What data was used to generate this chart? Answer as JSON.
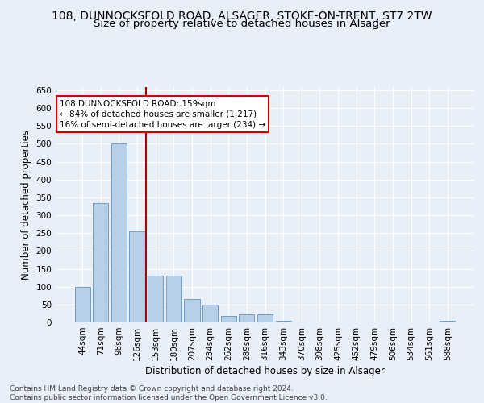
{
  "title1": "108, DUNNOCKSFOLD ROAD, ALSAGER, STOKE-ON-TRENT, ST7 2TW",
  "title2": "Size of property relative to detached houses in Alsager",
  "xlabel": "Distribution of detached houses by size in Alsager",
  "ylabel": "Number of detached properties",
  "categories": [
    "44sqm",
    "71sqm",
    "98sqm",
    "126sqm",
    "153sqm",
    "180sqm",
    "207sqm",
    "234sqm",
    "262sqm",
    "289sqm",
    "316sqm",
    "343sqm",
    "370sqm",
    "398sqm",
    "425sqm",
    "452sqm",
    "479sqm",
    "506sqm",
    "534sqm",
    "561sqm",
    "588sqm"
  ],
  "values": [
    100,
    335,
    500,
    255,
    130,
    130,
    65,
    50,
    18,
    22,
    22,
    5,
    0,
    0,
    0,
    0,
    0,
    0,
    0,
    0,
    5
  ],
  "bar_color": "#b8cfe8",
  "bar_edge_color": "#6fa0c8",
  "vline_x_index": 4,
  "vline_color": "#aa0000",
  "annotation_text": "108 DUNNOCKSFOLD ROAD: 159sqm\n← 84% of detached houses are smaller (1,217)\n16% of semi-detached houses are larger (234) →",
  "annotation_box_color": "#ffffff",
  "annotation_box_edge": "#cc0000",
  "footer": "Contains HM Land Registry data © Crown copyright and database right 2024.\nContains public sector information licensed under the Open Government Licence v3.0.",
  "ylim": [
    0,
    660
  ],
  "yticks": [
    0,
    50,
    100,
    150,
    200,
    250,
    300,
    350,
    400,
    450,
    500,
    550,
    600,
    650
  ],
  "bg_color": "#e8eff8",
  "plot_bg": "#e8eff8",
  "grid_color": "#ffffff",
  "title1_fontsize": 10,
  "title2_fontsize": 9.5,
  "tick_fontsize": 7.5,
  "label_fontsize": 8.5,
  "footer_fontsize": 6.5
}
